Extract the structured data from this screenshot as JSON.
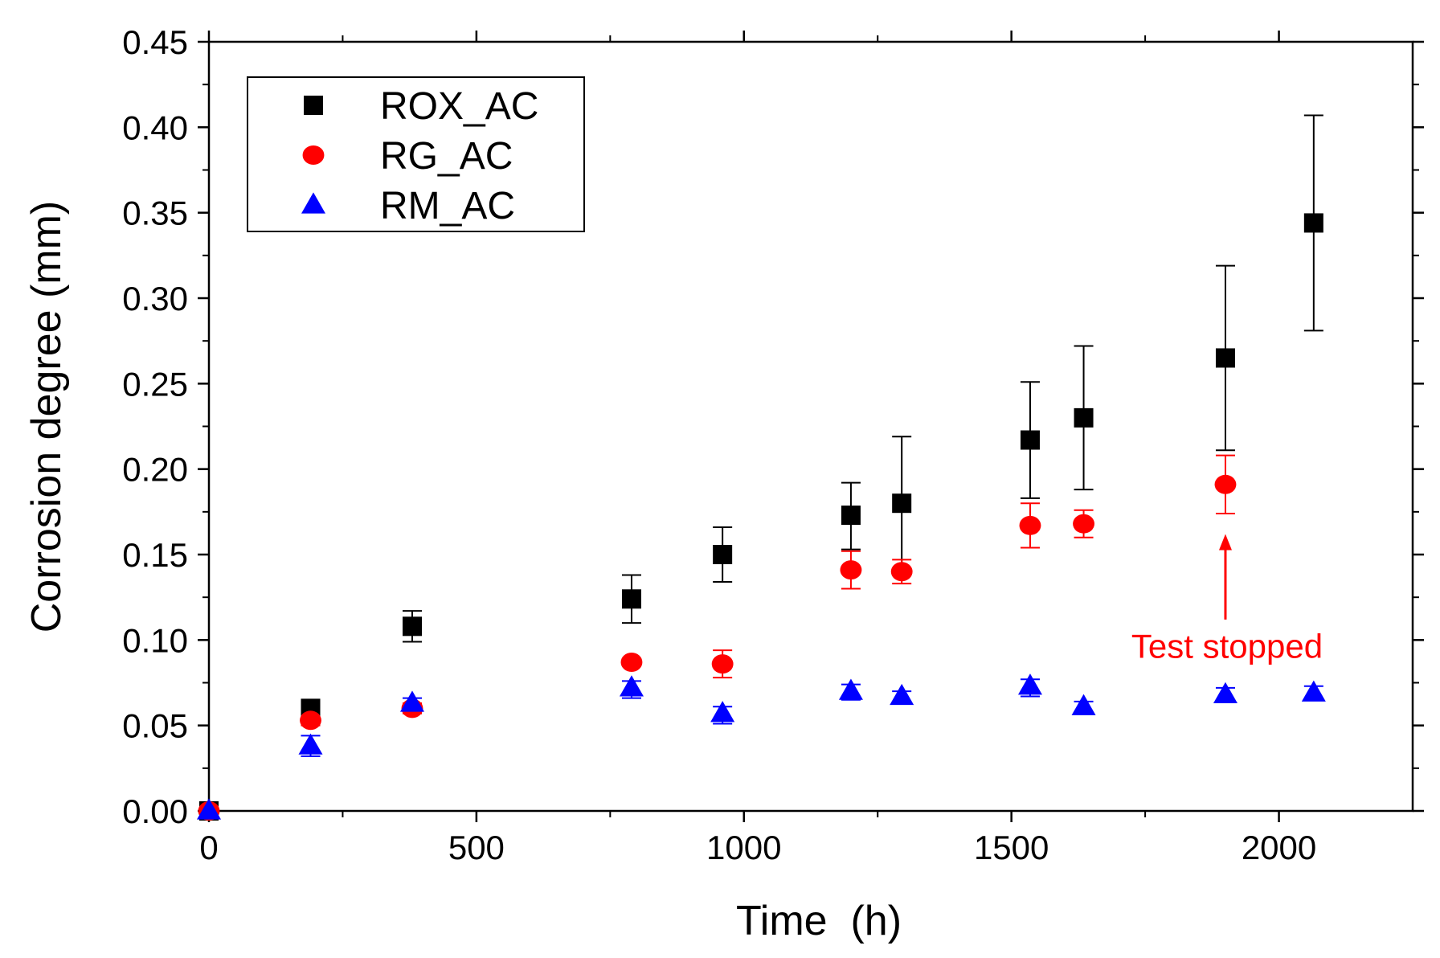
{
  "chart_data": {
    "type": "scatter",
    "title": "",
    "xlabel": "Time  (h)",
    "ylabel": "Corrosion degree (mm)",
    "xlim": [
      0,
      2250
    ],
    "ylim": [
      0,
      0.45
    ],
    "xticks": [
      0,
      500,
      1000,
      1500,
      2000
    ],
    "yticks": [
      0.0,
      0.05,
      0.1,
      0.15,
      0.2,
      0.25,
      0.3,
      0.35,
      0.4,
      0.45
    ],
    "xtick_labels": [
      "0",
      "500",
      "1000",
      "1500",
      "2000"
    ],
    "ytick_labels": [
      "0.00",
      "0.05",
      "0.10",
      "0.15",
      "0.20",
      "0.25",
      "0.30",
      "0.35",
      "0.40",
      "0.45"
    ],
    "legend_position": "top-left",
    "grid": false,
    "series": [
      {
        "name": "ROX_AC",
        "marker": "square",
        "color": "#000000",
        "x": [
          0,
          190,
          380,
          790,
          960,
          1200,
          1295,
          1535,
          1635,
          1900,
          2065
        ],
        "y": [
          0.0,
          0.06,
          0.108,
          0.124,
          0.15,
          0.173,
          0.18,
          0.217,
          0.23,
          0.265,
          0.344
        ],
        "err_low": [
          0.0,
          0.004,
          0.009,
          0.014,
          0.016,
          0.02,
          0.04,
          0.034,
          0.042,
          0.054,
          0.063
        ],
        "err_high": [
          0.0,
          0.004,
          0.009,
          0.014,
          0.016,
          0.019,
          0.039,
          0.034,
          0.042,
          0.054,
          0.063
        ]
      },
      {
        "name": "RG_AC",
        "marker": "circle",
        "color": "#ff0000",
        "x": [
          0,
          190,
          380,
          790,
          960,
          1200,
          1295,
          1535,
          1635,
          1900
        ],
        "y": [
          0.0,
          0.053,
          0.06,
          0.087,
          0.086,
          0.141,
          0.14,
          0.167,
          0.168,
          0.191
        ],
        "err_low": [
          0.0,
          0.003,
          0.003,
          0.002,
          0.008,
          0.011,
          0.007,
          0.013,
          0.008,
          0.017
        ],
        "err_high": [
          0.0,
          0.003,
          0.003,
          0.002,
          0.008,
          0.011,
          0.007,
          0.013,
          0.008,
          0.017
        ]
      },
      {
        "name": "RM_AC",
        "marker": "triangle",
        "color": "#0000ff",
        "x": [
          0,
          190,
          380,
          790,
          960,
          1200,
          1295,
          1535,
          1635,
          1900,
          2065
        ],
        "y": [
          0.0,
          0.038,
          0.063,
          0.072,
          0.057,
          0.07,
          0.067,
          0.073,
          0.061,
          0.068,
          0.069
        ],
        "err_low": [
          0.0,
          0.006,
          0.003,
          0.006,
          0.006,
          0.005,
          0.003,
          0.006,
          0.003,
          0.004,
          0.004
        ],
        "err_high": [
          0.0,
          0.006,
          0.003,
          0.004,
          0.004,
          0.004,
          0.003,
          0.004,
          0.003,
          0.004,
          0.004
        ]
      }
    ],
    "annotations": [
      {
        "text": "Test stopped",
        "color": "#ff0000",
        "arrow_from": [
          1900,
          0.112
        ],
        "arrow_to": [
          1900,
          0.162
        ],
        "text_x": 1900,
        "text_y": 0.097
      }
    ]
  }
}
